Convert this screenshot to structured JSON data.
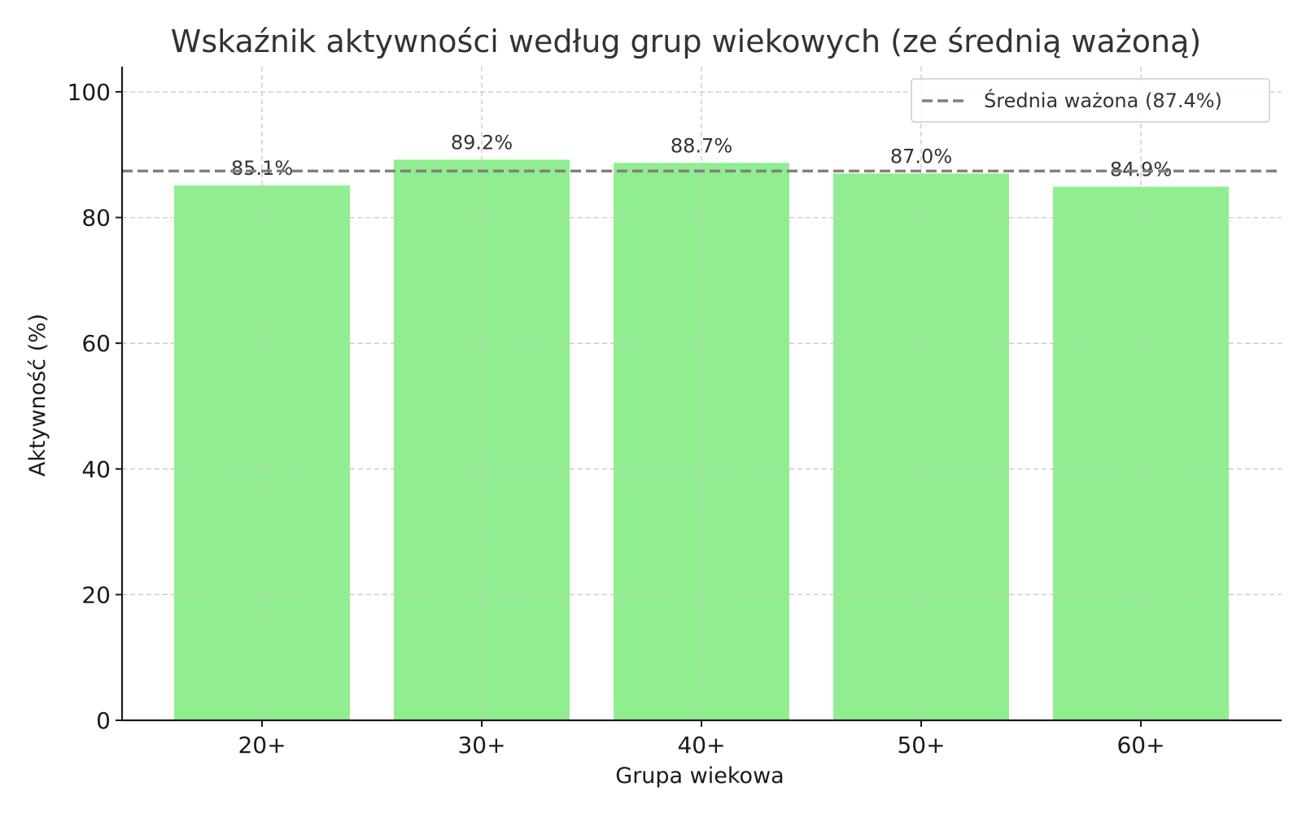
{
  "chart_data": {
    "type": "bar",
    "title": "Wskaźnik aktywności według grup wiekowych (ze średnią ważoną)",
    "xlabel": "Grupa wiekowa",
    "ylabel": "Aktywność (%)",
    "categories": [
      "20+",
      "30+",
      "40+",
      "50+",
      "60+"
    ],
    "values": [
      85.1,
      89.2,
      88.7,
      87.0,
      84.9
    ],
    "data_labels": [
      "85.1%",
      "89.2%",
      "88.7%",
      "87.0%",
      "84.9%"
    ],
    "ylim": [
      0,
      104
    ],
    "yticks": [
      0,
      20,
      40,
      60,
      80,
      100
    ],
    "grid": true,
    "bar_color": "#90ee90",
    "reference_line": {
      "value": 87.4,
      "label": "Średnia ważona (87.4%)",
      "color": "#808080",
      "style": "dashed"
    },
    "legend": {
      "placement": "top-right",
      "entries": [
        "Średnia ważona (87.4%)"
      ]
    }
  }
}
